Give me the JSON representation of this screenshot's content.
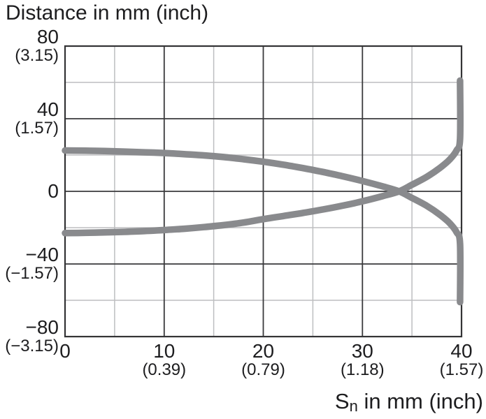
{
  "labels": {
    "y_axis_title": "Distance in mm (inch)",
    "x_axis_title_main": "S",
    "x_axis_title_sub": "n",
    "x_axis_title_rest": " in mm (inch)"
  },
  "colors": {
    "background": "#ffffff",
    "curve": "#898a8d",
    "grid_major": "#3a3a3c",
    "grid_minor": "#bdbec0",
    "border": "#333335",
    "text": "#1d1d1f"
  },
  "chart_data": {
    "type": "line",
    "title": "Distance in mm (inch)",
    "xlabel": "Sn in mm (inch)",
    "ylabel": "Distance in mm (inch)",
    "xlim": [
      0,
      40
    ],
    "ylim": [
      -80,
      80
    ],
    "grid": "on",
    "legend": "none",
    "x_ticks": [
      {
        "value": 0,
        "label": "0",
        "inch": ""
      },
      {
        "value": 10,
        "label": "10",
        "inch": "(0.39)"
      },
      {
        "value": 20,
        "label": "20",
        "inch": "(0.79)"
      },
      {
        "value": 30,
        "label": "30",
        "inch": "(1.18)"
      },
      {
        "value": 40,
        "label": "40",
        "inch": "(1.57)"
      }
    ],
    "y_ticks": [
      {
        "value": 80,
        "label": "80",
        "inch": "(3.15)"
      },
      {
        "value": 40,
        "label": "40",
        "inch": "(1.57)"
      },
      {
        "value": 0,
        "label": "0",
        "inch": ""
      },
      {
        "value": -40,
        "label": "−40",
        "inch": "(−1.57)"
      },
      {
        "value": -80,
        "label": "−80",
        "inch": "(−3.15)"
      }
    ],
    "x_minor_gridlines": [
      5,
      15,
      25,
      35
    ],
    "y_minor_gridlines": [
      60,
      20,
      -20,
      -60
    ],
    "crossing_point": {
      "x": 33.7,
      "y": 0
    },
    "series": [
      {
        "name": "upper-sensing-boundary",
        "x": [
          0,
          2,
          4,
          6,
          8,
          10,
          12,
          14,
          16,
          18,
          20,
          22,
          24,
          26,
          28,
          30,
          32,
          33.7,
          35,
          36.5,
          37.8,
          38.8,
          39.5,
          39.85,
          39.85
        ],
        "y": [
          22.5,
          22.4,
          22.2,
          21.9,
          21.5,
          21.1,
          20.5,
          19.8,
          18.9,
          17.7,
          16.3,
          14.7,
          12.8,
          10.7,
          8.3,
          5.7,
          2.8,
          0,
          -3.6,
          -8,
          -12.8,
          -17.5,
          -22.5,
          -29,
          -61
        ]
      },
      {
        "name": "lower-sensing-boundary",
        "x": [
          0,
          2,
          4,
          6,
          8,
          10,
          12,
          14,
          16,
          18,
          20,
          22,
          24,
          26,
          28,
          30,
          32,
          33.7,
          35,
          36.5,
          37.8,
          38.8,
          39.5,
          39.85,
          39.85
        ],
        "y": [
          -23,
          -22.85,
          -22.6,
          -22.3,
          -21.9,
          -21.3,
          -20.6,
          -19.7,
          -18.6,
          -17.2,
          -15.3,
          -13.6,
          -11.9,
          -10.0,
          -7.9,
          -5.5,
          -2.7,
          0,
          3.6,
          8,
          12.8,
          17.5,
          22.5,
          29,
          61
        ]
      }
    ]
  }
}
